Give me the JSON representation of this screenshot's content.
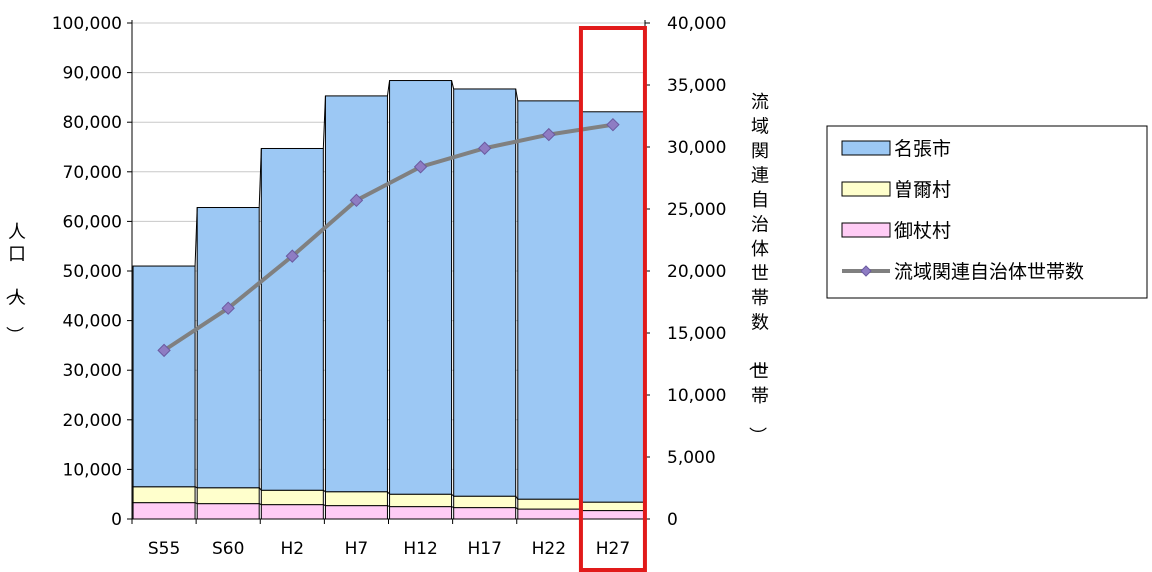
{
  "colors": {
    "nabari": "#9cc8f4",
    "soni": "#ffffcc",
    "mitsue": "#ffccf5",
    "line": "#808080",
    "marker": "#8e7cc3",
    "highlight": "#e11a1a"
  },
  "chart_data": {
    "type": "bar",
    "stacked": true,
    "categories": [
      "S55",
      "S60",
      "H2",
      "H7",
      "H12",
      "H17",
      "H22",
      "H27"
    ],
    "series": [
      {
        "name": "御杖村",
        "values": [
          3300,
          3100,
          2900,
          2700,
          2500,
          2300,
          2000,
          1700
        ]
      },
      {
        "name": "曽爾村",
        "values": [
          3200,
          3200,
          2900,
          2800,
          2500,
          2300,
          2000,
          1700
        ]
      },
      {
        "name": "名張市",
        "values": [
          44500,
          56500,
          68900,
          79800,
          83400,
          82100,
          80300,
          78700
        ]
      }
    ],
    "line_series": {
      "name": "流域関連自治体世帯数",
      "axis": "right",
      "values": [
        13600,
        17000,
        21200,
        25700,
        28400,
        29900,
        31000,
        31800
      ]
    },
    "ylabel": "人口（人）",
    "y2label": "流域関連自治体世帯数（世帯）",
    "ylim": [
      0,
      100000
    ],
    "y2lim": [
      0,
      40000
    ],
    "yticks": [
      "0",
      "10,000",
      "20,000",
      "30,000",
      "40,000",
      "50,000",
      "60,000",
      "70,000",
      "80,000",
      "90,000",
      "100,000"
    ],
    "y2ticks": [
      "0",
      "5,000",
      "10,000",
      "15,000",
      "20,000",
      "25,000",
      "30,000",
      "35,000",
      "40,000"
    ],
    "legend_position": "right",
    "legend": [
      "名張市",
      "曽爾村",
      "御杖村",
      "流域関連自治体世帯数"
    ],
    "highlighted_category": "H27",
    "grid": true
  }
}
